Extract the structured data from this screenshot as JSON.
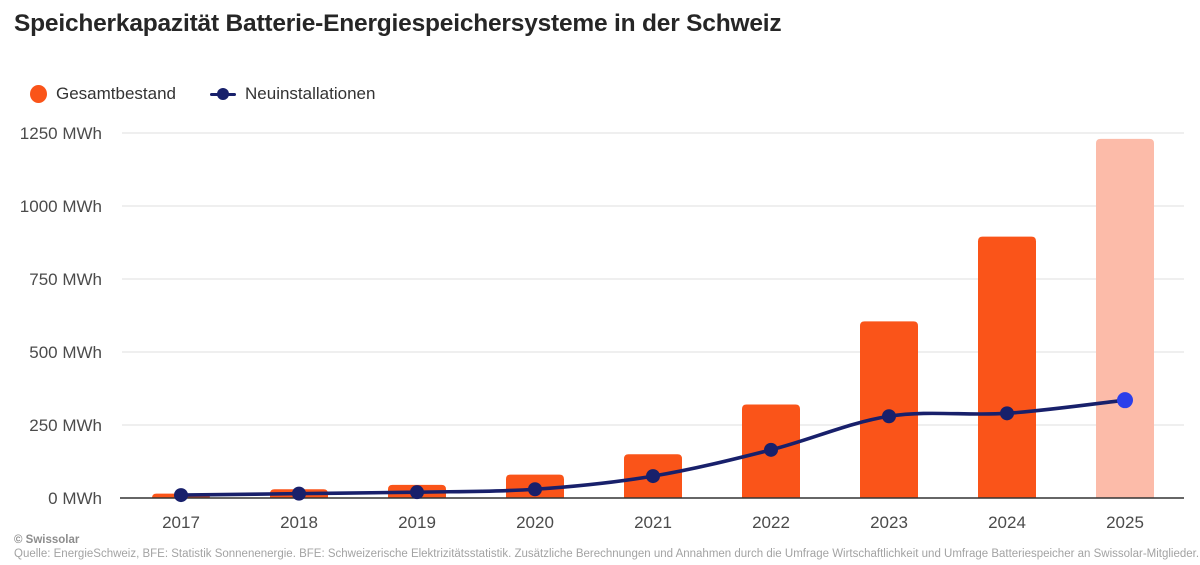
{
  "title": "Speicherkapazität Batterie-Energiespeichersysteme in der Schweiz",
  "legend": {
    "items": [
      {
        "label": "Gesamtbestand",
        "marker": "circle-icon",
        "color": "#FA5419"
      },
      {
        "label": "Neuinstallationen",
        "marker": "line-dot-icon",
        "color": "#18206B"
      }
    ]
  },
  "chart_data": {
    "type": "bar+line",
    "categories": [
      "2017",
      "2018",
      "2019",
      "2020",
      "2021",
      "2022",
      "2023",
      "2024",
      "2025"
    ],
    "series": [
      {
        "name": "Gesamtbestand",
        "type": "bar",
        "values": [
          15,
          30,
          45,
          80,
          150,
          320,
          605,
          895,
          1230
        ],
        "color": "#FA5419",
        "last_is_forecast": true,
        "forecast_color": "#FCBBA9"
      },
      {
        "name": "Neuinstallationen",
        "type": "line",
        "values": [
          10,
          15,
          20,
          30,
          75,
          165,
          280,
          290,
          335
        ],
        "color": "#18206B",
        "last_point_color": "#2B3FEA"
      }
    ],
    "ylim": [
      0,
      1250
    ],
    "yticks": [
      0,
      250,
      500,
      750,
      1000,
      1250
    ],
    "ytick_suffix": " MWh",
    "xlabel": "",
    "ylabel": "",
    "grid": true,
    "legend_position": "top-left",
    "grid_color": "#EAEAEA",
    "axis_line_color": "#333333",
    "tick_label_color": "#4B4B4B"
  },
  "footer": {
    "copyright": "© Swissolar",
    "source": "Quelle: EnergieSchweiz, BFE: Statistik Sonnenenergie. BFE: Schweizerische Elektrizitätsstatistik. Zusätzliche Berechnungen und Annahmen durch die Umfrage Wirtschaftlichkeit und Umfrage Batteriespeicher an Swissolar-Mitglieder."
  }
}
